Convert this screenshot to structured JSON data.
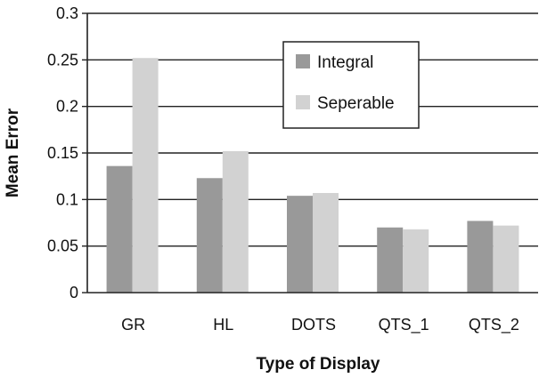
{
  "chart_data": {
    "type": "bar",
    "title": "",
    "xlabel": "Type of Display",
    "ylabel": "Mean Error",
    "ylim": [
      0,
      0.3
    ],
    "yticks": [
      {
        "value": 0,
        "label": "0"
      },
      {
        "value": 0.05,
        "label": "0.05"
      },
      {
        "value": 0.1,
        "label": "0.1"
      },
      {
        "value": 0.15,
        "label": "0.15"
      },
      {
        "value": 0.2,
        "label": "0.2"
      },
      {
        "value": 0.25,
        "label": "0.25"
      },
      {
        "value": 0.3,
        "label": "0.3"
      }
    ],
    "grid": true,
    "legend_position": "top-right",
    "categories": [
      "GR",
      "HL",
      "DOTS",
      "QTS_1",
      "QTS_2"
    ],
    "series": [
      {
        "name": "Integral",
        "color": "#999999",
        "values": [
          0.136,
          0.123,
          0.104,
          0.07,
          0.077
        ]
      },
      {
        "name": "Seperable",
        "color": "#d2d2d2",
        "values": [
          0.252,
          0.152,
          0.107,
          0.068,
          0.072
        ]
      }
    ]
  }
}
